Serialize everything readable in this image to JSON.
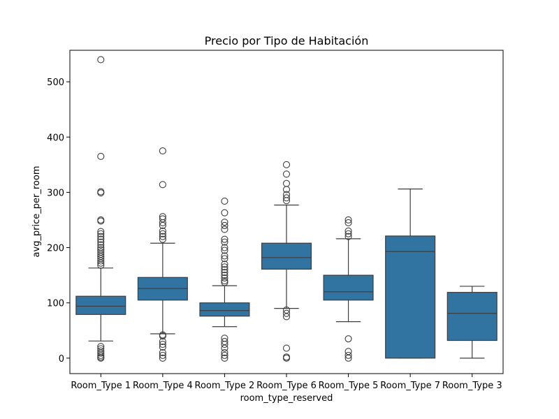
{
  "chart_data": {
    "type": "box",
    "title": "Precio por Tipo de Habitación",
    "xlabel": "room_type_reserved",
    "ylabel": "avg_price_per_room",
    "ylim": [
      -28,
      557
    ],
    "yticks": [
      0,
      100,
      200,
      300,
      400,
      500
    ],
    "grid": false,
    "box_color": "#3274a1",
    "line_color": "#3d3d3d",
    "categories": [
      "Room_Type 1",
      "Room_Type 4",
      "Room_Type 2",
      "Room_Type 6",
      "Room_Type 5",
      "Room_Type 7",
      "Room_Type 3"
    ],
    "boxes": [
      {
        "category": "Room_Type 1",
        "whisker_low": 31,
        "q1": 79,
        "median": 94,
        "q3": 112,
        "whisker_high": 163,
        "outliers": [
          540,
          365,
          301,
          299,
          250,
          248,
          229,
          225,
          220,
          215,
          210,
          205,
          200,
          196,
          192,
          188,
          184,
          180,
          176,
          172,
          168,
          21,
          17,
          13,
          9,
          5,
          2,
          0
        ]
      },
      {
        "category": "Room_Type 4",
        "whisker_low": 44,
        "q1": 105,
        "median": 126,
        "q3": 146,
        "whisker_high": 208,
        "outliers": [
          375,
          314,
          256,
          252,
          245,
          240,
          230,
          225,
          220,
          215,
          42,
          40,
          30,
          25,
          20,
          10,
          5,
          0
        ]
      },
      {
        "category": "Room_Type 2",
        "whisker_low": 57,
        "q1": 76,
        "median": 86,
        "q3": 100,
        "whisker_high": 131,
        "outliers": [
          284,
          263,
          246,
          240,
          233,
          215,
          210,
          200,
          195,
          185,
          180,
          170,
          165,
          160,
          155,
          150,
          145,
          140,
          137,
          36,
          30,
          25,
          18,
          10,
          5,
          0
        ]
      },
      {
        "category": "Room_Type 6",
        "whisker_low": 90,
        "q1": 161,
        "median": 182,
        "q3": 208,
        "whisker_high": 277,
        "outliers": [
          350,
          333,
          316,
          305,
          296,
          290,
          285,
          87,
          81,
          75,
          18,
          2,
          0
        ]
      },
      {
        "category": "Room_Type 5",
        "whisker_low": 66,
        "q1": 105,
        "median": 120,
        "q3": 150,
        "whisker_high": 216,
        "outliers": [
          250,
          245,
          230,
          225,
          220,
          35,
          12,
          5,
          0
        ]
      },
      {
        "category": "Room_Type 7",
        "whisker_low": 0,
        "q1": 0,
        "median": 193,
        "q3": 221,
        "whisker_high": 306,
        "outliers": []
      },
      {
        "category": "Room_Type 3",
        "whisker_low": 0,
        "q1": 32,
        "median": 81,
        "q3": 119,
        "whisker_high": 130,
        "outliers": []
      }
    ]
  }
}
